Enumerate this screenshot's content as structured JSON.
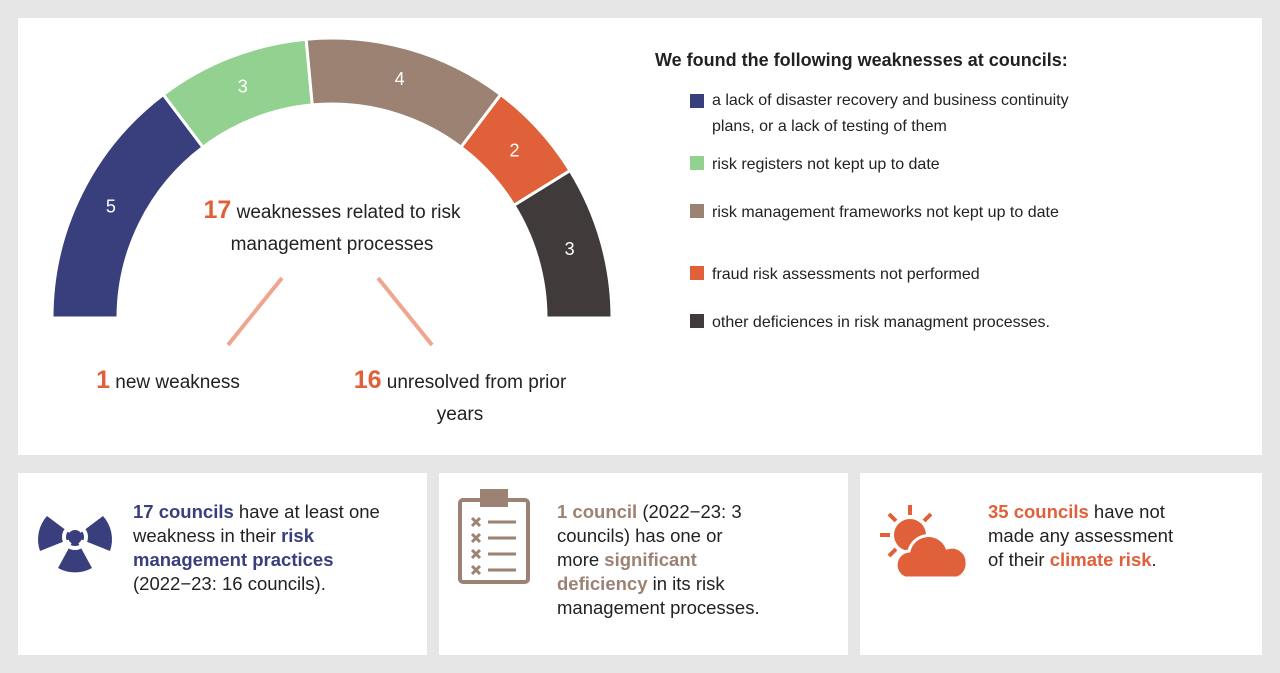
{
  "chart_data": {
    "type": "semi-donut",
    "categories": [
      "a lack of disaster recovery and business continuity plans, or a lack of testing of them",
      "risk registers not kept up to date",
      "risk management frameworks not kept up to date",
      "fraud risk assessments not performed",
      "other deficiences in risk managment processes."
    ],
    "values": [
      5,
      3,
      4,
      2,
      3
    ],
    "colors": [
      "#383f7c",
      "#93d191",
      "#9c8272",
      "#e0603a",
      "#403a3a"
    ],
    "legend_title": "We found the following weaknesses at councils:",
    "center": {
      "value": 17,
      "text": "weaknesses related to risk management processes"
    },
    "split": [
      {
        "value": 1,
        "text": "new weakness"
      },
      {
        "value": 16,
        "text": "unresolved from prior years"
      }
    ]
  },
  "cards": [
    {
      "color": "#383f7c",
      "parts": [
        {
          "text": "17 councils",
          "em": true
        },
        {
          "text": " have at least one weakness in their ",
          "em": false
        },
        {
          "text": "risk management practices",
          "em": true
        },
        {
          "text": " (2022−23: 16 councils).",
          "em": false
        }
      ]
    },
    {
      "color": "#9c8272",
      "parts": [
        {
          "text": "1 council",
          "em": true
        },
        {
          "text": " (2022−23: 3 councils) has one or more ",
          "em": false
        },
        {
          "text": "significant deficiency",
          "em": true
        },
        {
          "text": " in its risk management processes.",
          "em": false
        }
      ]
    },
    {
      "color": "#e0603a",
      "parts": [
        {
          "text": "35 councils",
          "em": true
        },
        {
          "text": " have not made any assessment of their ",
          "em": false
        },
        {
          "text": "climate risk",
          "em": true
        },
        {
          "text": ".",
          "em": false
        }
      ]
    }
  ]
}
